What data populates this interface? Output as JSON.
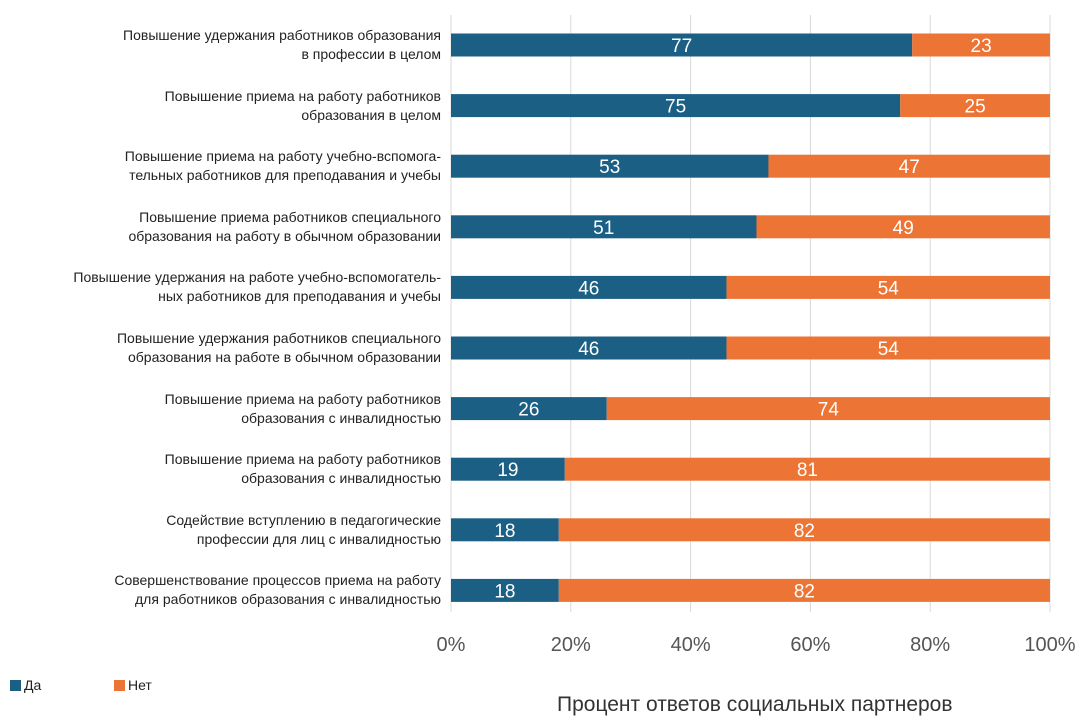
{
  "chart_data": {
    "type": "bar",
    "orientation": "horizontal",
    "stacked": true,
    "categories": [
      "Повышение удержания работников образования\nв профессии в целом",
      "Повышение приема на работу работников\nобразования в целом",
      "Повышение приема на работу учебно-вспомога-\nтельных работников для преподавания и учебы",
      "Повышение приема работников специального\nобразования на работу в обычном образовании",
      "Повышение удержания на работе учебно-вспомогатель-\nных работников для преподавания и учебы",
      "Повышение удержания работников специального\nобразования на работе в обычном образовании",
      "Повышение приема на работу работников\nобразования с инвалидностью",
      "Повышение приема на работу работников\nобразования с инвалидностью",
      "Содействие вступлению в педагогические\nпрофессии для лиц с инвалидностью",
      "Совершенствование процессов приема на работу\nдля работников образования с инвалидностью"
    ],
    "series": [
      {
        "name": "Да",
        "color": "#1b5f84",
        "values": [
          77,
          75,
          53,
          51,
          46,
          46,
          26,
          19,
          18,
          18
        ]
      },
      {
        "name": "Нет",
        "color": "#ec7434",
        "values": [
          23,
          25,
          47,
          49,
          54,
          54,
          74,
          81,
          82,
          82
        ]
      }
    ],
    "xlim": [
      0,
      100
    ],
    "xticks": [
      "0%",
      "20%",
      "40%",
      "60%",
      "80%",
      "100%"
    ],
    "xlabel": "Процент ответов социальных партнеров",
    "grid": true,
    "legend_position": "bottom-left"
  }
}
